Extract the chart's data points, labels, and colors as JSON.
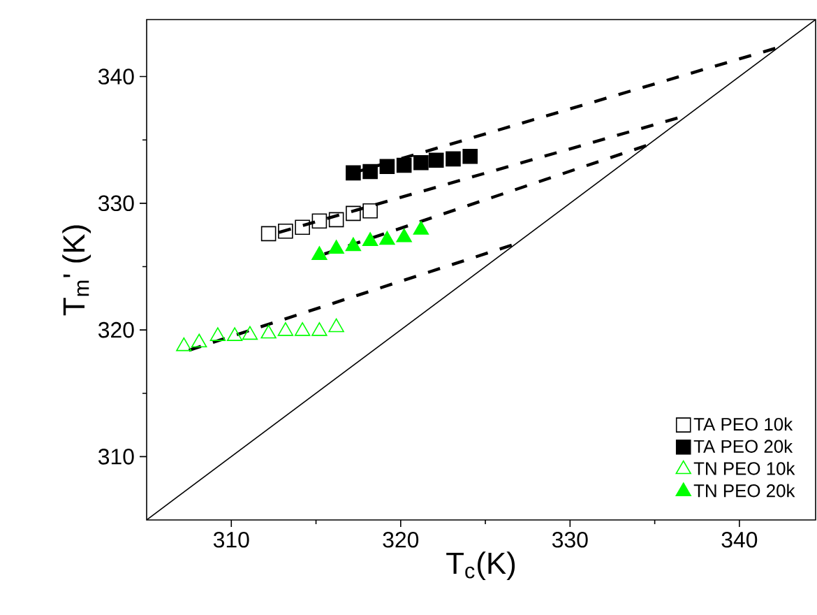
{
  "chart_data": {
    "type": "scatter",
    "xlabel": "T$_{c}$(K)",
    "ylabel": "T$_{m}$' (K)",
    "xlim": [
      305,
      344.5
    ],
    "ylim": [
      305,
      344.5
    ],
    "xticks": [
      310,
      320,
      330,
      340
    ],
    "yticks": [
      310,
      320,
      330,
      340
    ],
    "grid": false,
    "legend": "bottom right",
    "series": [
      {
        "name": "TA PEO 10k",
        "marker": "square",
        "color": "#000000",
        "x": [
          312.2,
          313.2,
          314.2,
          315.2,
          316.2,
          317.2,
          318.2
        ],
        "values": [
          327.6,
          327.8,
          328.1,
          328.6,
          328.7,
          329.2,
          329.4
        ]
      },
      {
        "name": "TA PEO 20k",
        "marker": "square_filled",
        "color": "#000000",
        "x": [
          317.2,
          318.2,
          319.2,
          320.2,
          321.2,
          322.1,
          323.1,
          324.1
        ],
        "values": [
          332.4,
          332.5,
          332.9,
          333.0,
          333.2,
          333.4,
          333.5,
          333.7
        ]
      },
      {
        "name": "TN PEO 10k",
        "marker": "triangle",
        "color": "#00ff00",
        "x": [
          307.2,
          308.1,
          309.2,
          310.2,
          311.1,
          312.2,
          313.2,
          314.2,
          315.2,
          316.2
        ],
        "values": [
          318.7,
          319.0,
          319.5,
          319.5,
          319.6,
          319.7,
          319.9,
          319.9,
          319.9,
          320.2
        ]
      },
      {
        "name": "TN PEO 20k",
        "marker": "triangle_filled",
        "color": "#00ff00",
        "x": [
          315.2,
          316.2,
          317.2,
          318.2,
          319.2,
          320.2,
          321.2
        ],
        "values": [
          325.9,
          326.4,
          326.6,
          327.0,
          327.1,
          327.3,
          327.9
        ]
      },
      {
        "type": "line",
        "line_style": "dashed",
        "color": "#000000",
        "x": [
          312.8,
          336.8
        ],
        "values": [
          327.7,
          336.9
        ]
      },
      {
        "type": "line",
        "line_style": "dashed",
        "color": "#000000",
        "x": [
          317.2,
          342.3
        ],
        "values": [
          332.4,
          342.3
        ]
      },
      {
        "type": "line",
        "line_style": "dashed",
        "color": "#000000",
        "x": [
          307.5,
          326.8
        ],
        "values": [
          318.4,
          326.8
        ]
      },
      {
        "type": "line",
        "line_style": "dashed",
        "color": "#000000",
        "x": [
          315.5,
          334.6
        ],
        "values": [
          326.0,
          334.6
        ]
      },
      {
        "type": "line",
        "line_style": "solid",
        "color": "#000000",
        "x": [
          305,
          344.5
        ],
        "values": [
          305,
          344.5
        ]
      }
    ]
  }
}
